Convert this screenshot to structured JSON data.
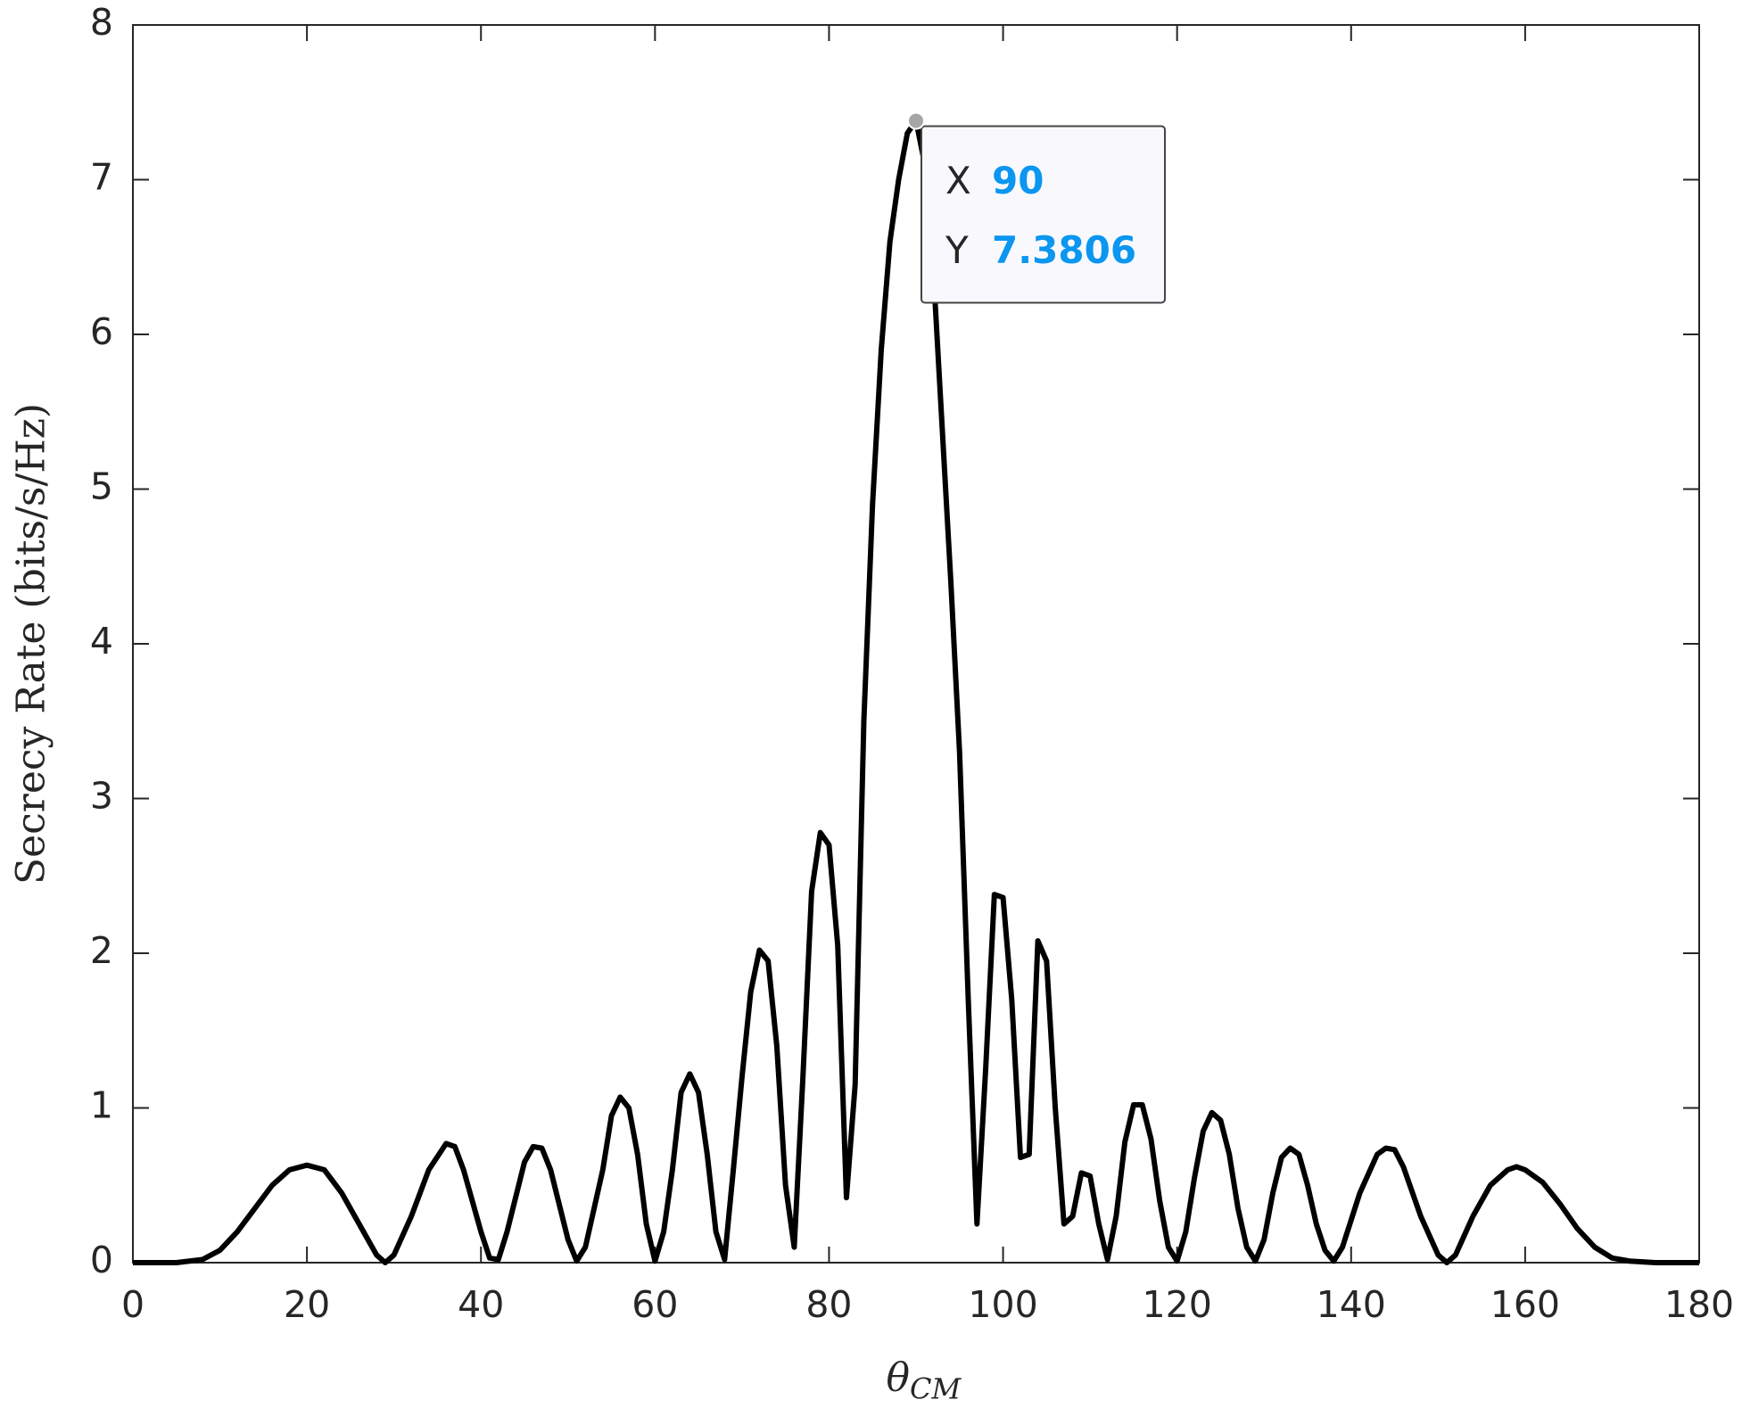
{
  "chart_data": {
    "type": "line",
    "ylabel": "Secrecy Rate (bits/s/Hz)",
    "xlabel": "θ",
    "xlabel_subscript": "CM",
    "xlim": [
      0,
      180
    ],
    "xticks": [
      0,
      20,
      40,
      60,
      80,
      100,
      120,
      140,
      160,
      180
    ],
    "ylim": [
      0,
      8
    ],
    "yticks": [
      0,
      1,
      2,
      3,
      4,
      5,
      6,
      7,
      8
    ],
    "grid": false,
    "x": [
      0,
      5,
      8,
      10,
      12,
      14,
      16,
      18,
      20,
      22,
      24,
      26,
      28,
      29,
      30,
      32,
      34,
      36,
      37,
      38,
      40,
      41,
      42,
      43,
      45,
      46,
      47,
      48,
      50,
      51,
      52,
      54,
      55,
      56,
      57,
      58,
      59,
      60,
      61,
      62,
      63,
      64,
      65,
      66,
      67,
      68,
      69,
      70,
      71,
      72,
      73,
      74,
      75,
      76,
      77,
      78,
      79,
      80,
      81,
      82,
      83,
      84,
      85,
      86,
      87,
      88,
      89,
      90,
      91,
      92,
      93,
      94,
      95,
      96,
      97,
      98,
      99,
      100,
      101,
      102,
      103,
      104,
      105,
      106,
      107,
      108,
      109,
      110,
      111,
      112,
      113,
      114,
      115,
      116,
      117,
      118,
      119,
      120,
      121,
      122,
      123,
      124,
      125,
      126,
      127,
      128,
      129,
      130,
      131,
      132,
      133,
      134,
      135,
      136,
      137,
      138,
      139,
      141,
      143,
      144,
      145,
      146,
      148,
      150,
      151,
      152,
      154,
      156,
      158,
      159,
      160,
      162,
      164,
      166,
      168,
      170,
      172,
      175,
      180
    ],
    "series": [
      {
        "name": "Secrecy Rate",
        "color": "#000000",
        "values": [
          0,
          0,
          0.02,
          0.08,
          0.2,
          0.35,
          0.5,
          0.6,
          0.63,
          0.6,
          0.45,
          0.25,
          0.05,
          0,
          0.05,
          0.3,
          0.6,
          0.77,
          0.75,
          0.6,
          0.2,
          0.03,
          0.02,
          0.2,
          0.65,
          0.75,
          0.74,
          0.6,
          0.15,
          0.01,
          0.1,
          0.6,
          0.95,
          1.07,
          1.0,
          0.7,
          0.25,
          0.01,
          0.2,
          0.6,
          1.1,
          1.22,
          1.1,
          0.7,
          0.2,
          0.02,
          0.6,
          1.2,
          1.75,
          2.02,
          1.95,
          1.4,
          0.5,
          0.1,
          1.2,
          2.4,
          2.78,
          2.7,
          2.05,
          0.42,
          1.15,
          3.5,
          4.9,
          5.9,
          6.6,
          7.0,
          7.3,
          7.3806,
          7.1,
          6.4,
          5.4,
          4.4,
          3.3,
          1.7,
          0.25,
          1.25,
          2.38,
          2.36,
          1.7,
          0.68,
          0.7,
          2.08,
          1.95,
          1.0,
          0.25,
          0.3,
          0.58,
          0.56,
          0.25,
          0.02,
          0.3,
          0.78,
          1.02,
          1.02,
          0.8,
          0.4,
          0.1,
          0.01,
          0.2,
          0.55,
          0.85,
          0.97,
          0.92,
          0.7,
          0.35,
          0.1,
          0.01,
          0.15,
          0.45,
          0.68,
          0.74,
          0.7,
          0.5,
          0.25,
          0.08,
          0.01,
          0.1,
          0.45,
          0.7,
          0.74,
          0.73,
          0.62,
          0.3,
          0.05,
          0,
          0.05,
          0.3,
          0.5,
          0.6,
          0.62,
          0.6,
          0.52,
          0.38,
          0.22,
          0.1,
          0.03,
          0.01,
          0,
          0
        ]
      }
    ],
    "datatip": {
      "x_label": "X",
      "x": 90,
      "y_label": "Y",
      "y": 7.3806
    }
  }
}
